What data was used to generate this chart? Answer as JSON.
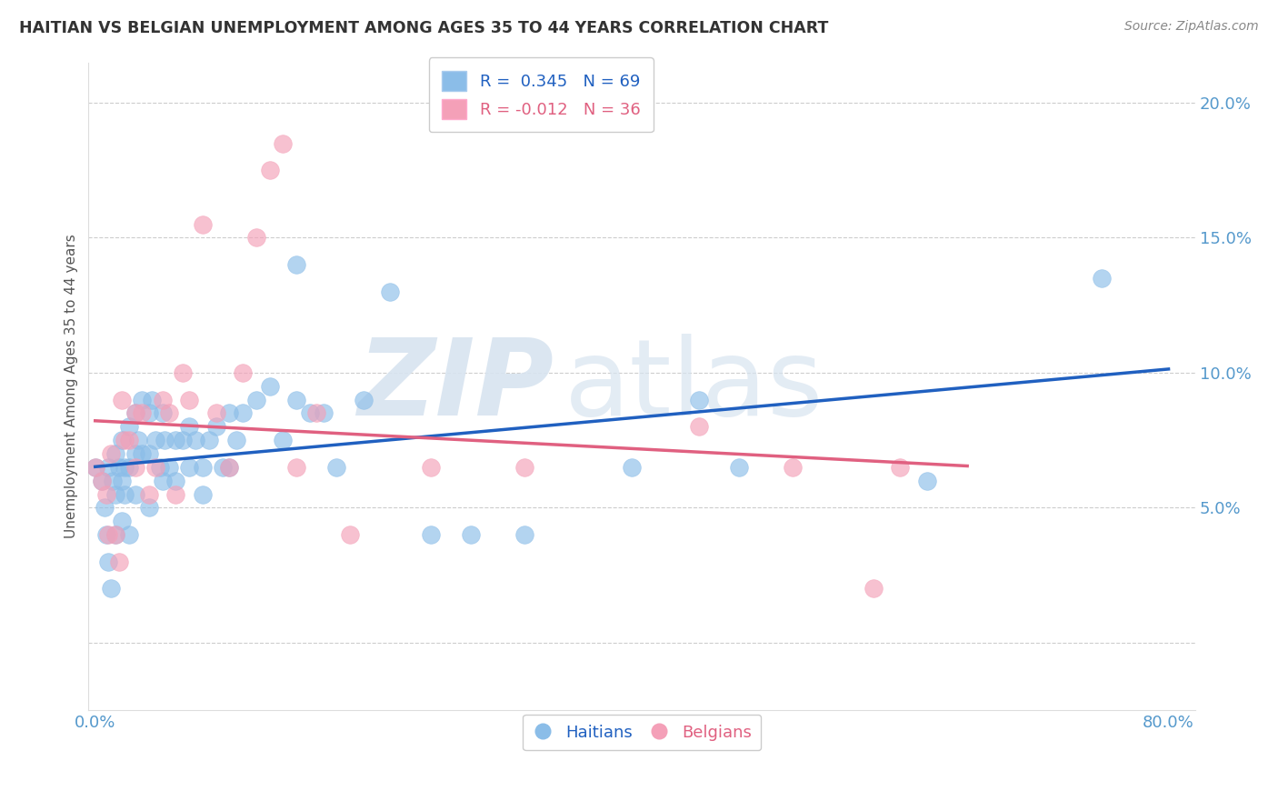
{
  "title": "HAITIAN VS BELGIAN UNEMPLOYMENT AMONG AGES 35 TO 44 YEARS CORRELATION CHART",
  "source": "Source: ZipAtlas.com",
  "ylabel": "Unemployment Among Ages 35 to 44 years",
  "xlim": [
    -0.005,
    0.82
  ],
  "ylim": [
    -0.025,
    0.215
  ],
  "xticks": [
    0.0,
    0.1,
    0.2,
    0.3,
    0.4,
    0.5,
    0.6,
    0.7,
    0.8
  ],
  "yticks": [
    0.0,
    0.05,
    0.1,
    0.15,
    0.2
  ],
  "yticklabels": [
    "",
    "5.0%",
    "10.0%",
    "15.0%",
    "20.0%"
  ],
  "legend_r_haitian": "0.345",
  "legend_n_haitian": "69",
  "legend_r_belgian": "-0.012",
  "legend_n_belgian": "36",
  "haitian_color": "#8BBDE8",
  "belgian_color": "#F4A0B8",
  "haitian_line_color": "#2060C0",
  "belgian_line_color": "#E06080",
  "watermark_zip": "ZIP",
  "watermark_atlas": "atlas",
  "background_color": "#FFFFFF",
  "haitian_x": [
    0.0,
    0.005,
    0.007,
    0.008,
    0.01,
    0.01,
    0.012,
    0.013,
    0.015,
    0.015,
    0.015,
    0.018,
    0.02,
    0.02,
    0.02,
    0.022,
    0.022,
    0.025,
    0.025,
    0.025,
    0.03,
    0.03,
    0.03,
    0.032,
    0.035,
    0.035,
    0.04,
    0.04,
    0.04,
    0.042,
    0.045,
    0.048,
    0.05,
    0.05,
    0.052,
    0.055,
    0.06,
    0.06,
    0.065,
    0.07,
    0.07,
    0.075,
    0.08,
    0.08,
    0.085,
    0.09,
    0.095,
    0.1,
    0.1,
    0.105,
    0.11,
    0.12,
    0.13,
    0.14,
    0.15,
    0.15,
    0.16,
    0.17,
    0.18,
    0.2,
    0.22,
    0.25,
    0.28,
    0.32,
    0.4,
    0.45,
    0.48,
    0.62,
    0.75
  ],
  "haitian_y": [
    0.065,
    0.06,
    0.05,
    0.04,
    0.065,
    0.03,
    0.02,
    0.06,
    0.07,
    0.055,
    0.04,
    0.065,
    0.075,
    0.06,
    0.045,
    0.065,
    0.055,
    0.08,
    0.065,
    0.04,
    0.085,
    0.07,
    0.055,
    0.075,
    0.09,
    0.07,
    0.085,
    0.07,
    0.05,
    0.09,
    0.075,
    0.065,
    0.085,
    0.06,
    0.075,
    0.065,
    0.075,
    0.06,
    0.075,
    0.08,
    0.065,
    0.075,
    0.065,
    0.055,
    0.075,
    0.08,
    0.065,
    0.085,
    0.065,
    0.075,
    0.085,
    0.09,
    0.095,
    0.075,
    0.14,
    0.09,
    0.085,
    0.085,
    0.065,
    0.09,
    0.13,
    0.04,
    0.04,
    0.04,
    0.065,
    0.09,
    0.065,
    0.06,
    0.135
  ],
  "belgian_x": [
    0.0,
    0.005,
    0.008,
    0.01,
    0.012,
    0.015,
    0.018,
    0.02,
    0.022,
    0.025,
    0.03,
    0.03,
    0.035,
    0.04,
    0.045,
    0.05,
    0.055,
    0.06,
    0.065,
    0.07,
    0.08,
    0.09,
    0.1,
    0.11,
    0.12,
    0.13,
    0.14,
    0.15,
    0.165,
    0.19,
    0.25,
    0.32,
    0.45,
    0.52,
    0.58,
    0.6
  ],
  "belgian_y": [
    0.065,
    0.06,
    0.055,
    0.04,
    0.07,
    0.04,
    0.03,
    0.09,
    0.075,
    0.075,
    0.085,
    0.065,
    0.085,
    0.055,
    0.065,
    0.09,
    0.085,
    0.055,
    0.1,
    0.09,
    0.155,
    0.085,
    0.065,
    0.1,
    0.15,
    0.175,
    0.185,
    0.065,
    0.085,
    0.04,
    0.065,
    0.065,
    0.08,
    0.065,
    0.02,
    0.065
  ]
}
